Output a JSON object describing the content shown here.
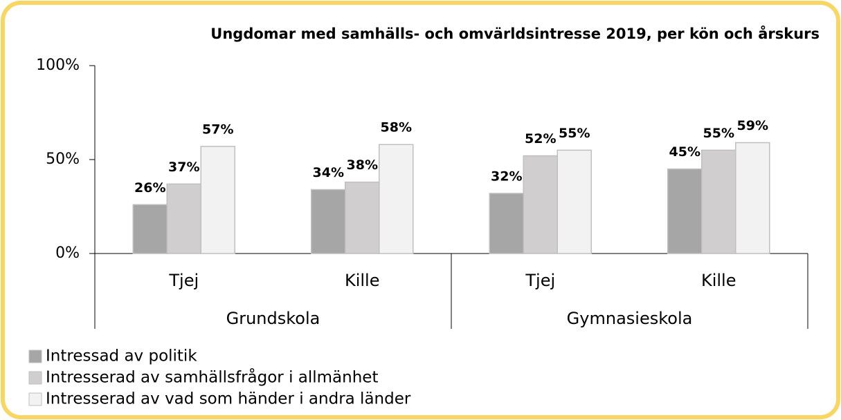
{
  "chart_data": {
    "type": "bar",
    "title": "Ungdomar med samhälls- och omvärldsintresse 2019, per kön och årskurs",
    "categories": [
      "Tjej",
      "Kille",
      "Tjej",
      "Kille"
    ],
    "groups": [
      "Grundskola",
      "Gymnasieskola"
    ],
    "series": [
      {
        "name": "Intressad av politik",
        "color": "#a6a6a6",
        "values": [
          26,
          34,
          32,
          45
        ],
        "value_labels": [
          "26%",
          "34%",
          "32%",
          "45%"
        ]
      },
      {
        "name": "Intresserad av samhällsfrågor i allmänhet",
        "color": "#d0cecf",
        "values": [
          37,
          38,
          52,
          55
        ],
        "value_labels": [
          "37%",
          "38%",
          "52%",
          "55%"
        ]
      },
      {
        "name": "Intresserad av vad som händer i andra länder",
        "color": "#f2f2f2",
        "values": [
          57,
          58,
          55,
          59
        ],
        "value_labels": [
          "57%",
          "58%",
          "55%",
          "59%"
        ]
      }
    ],
    "ylim": [
      0,
      100
    ],
    "yticks": [
      {
        "value": 0,
        "label": "0%"
      },
      {
        "value": 50,
        "label": "50%"
      },
      {
        "value": 100,
        "label": "100%"
      }
    ],
    "legend": "bottom-left"
  }
}
